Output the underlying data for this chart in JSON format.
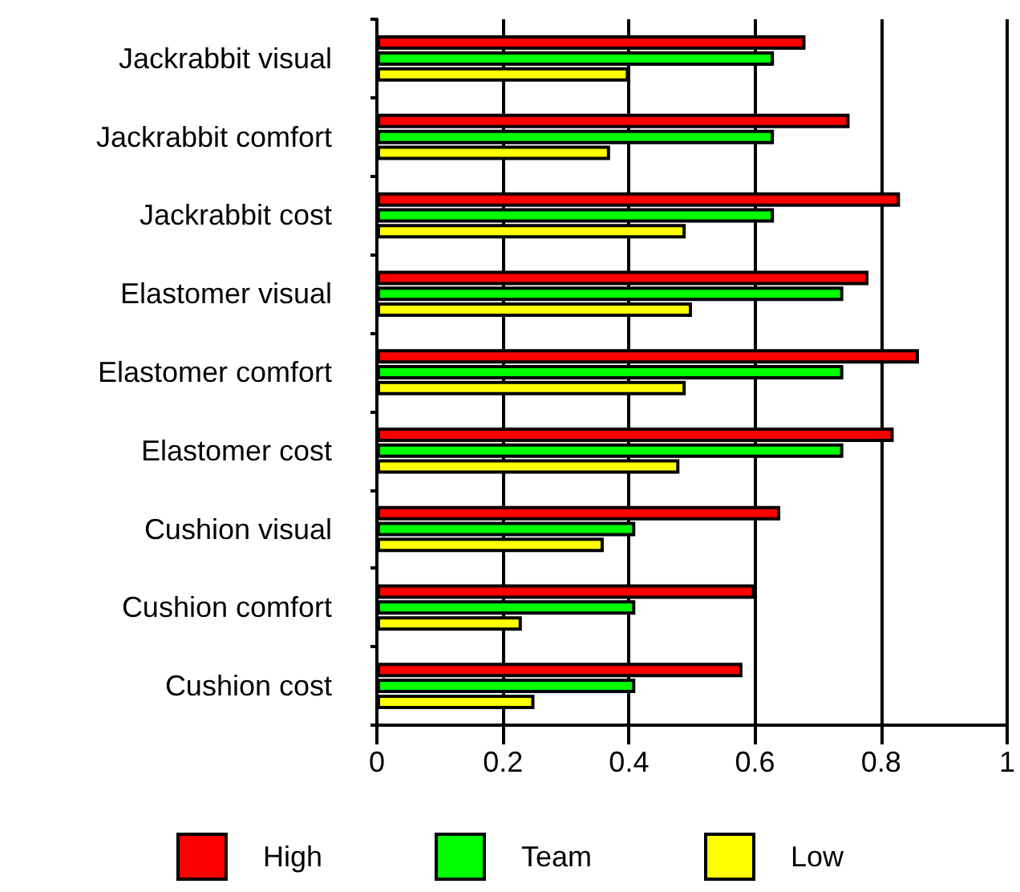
{
  "chart_data": {
    "type": "bar",
    "orientation": "horizontal",
    "categories": [
      "Jackrabbit visual",
      "Jackrabbit comfort",
      "Jackrabbit cost",
      "Elastomer visual",
      "Elastomer comfort",
      "Elastomer cost",
      "Cushion visual",
      "Cushion comfort",
      "Cushion cost"
    ],
    "series": [
      {
        "name": "High",
        "color": "#ff0000",
        "values": [
          0.68,
          0.75,
          0.83,
          0.78,
          0.86,
          0.82,
          0.64,
          0.6,
          0.58
        ]
      },
      {
        "name": "Team",
        "color": "#00ff00",
        "values": [
          0.63,
          0.63,
          0.63,
          0.74,
          0.74,
          0.74,
          0.41,
          0.41,
          0.41
        ]
      },
      {
        "name": "Low",
        "color": "#ffff00",
        "values": [
          0.4,
          0.37,
          0.49,
          0.5,
          0.49,
          0.48,
          0.36,
          0.23,
          0.25
        ]
      }
    ],
    "xlim": [
      0,
      1
    ],
    "xticks": [
      0,
      0.2,
      0.4,
      0.6,
      0.8,
      1
    ],
    "grid": "x",
    "legend": "bottom"
  }
}
